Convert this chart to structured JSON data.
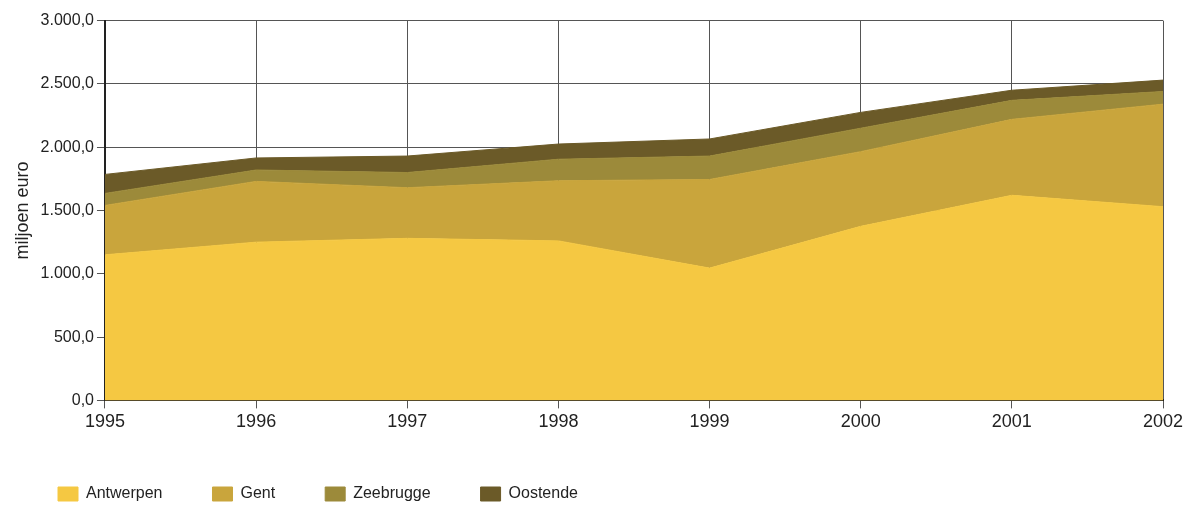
{
  "chart_data": {
    "type": "area",
    "stacked": true,
    "ylabel": "miljoen euro",
    "x": [
      1995,
      1996,
      1997,
      1998,
      1999,
      2000,
      2001,
      2002
    ],
    "xlim": [
      1995,
      2002
    ],
    "xticks": [
      1995,
      1996,
      1997,
      1998,
      1999,
      2000,
      2001,
      2002
    ],
    "ylim": [
      0,
      3000
    ],
    "yticks": [
      {
        "value": 0,
        "label": "0,0"
      },
      {
        "value": 500,
        "label": "500,0"
      },
      {
        "value": 1000,
        "label": "1.000,0"
      },
      {
        "value": 1500,
        "label": "1.500,0"
      },
      {
        "value": 2000,
        "label": "2.000,0"
      },
      {
        "value": 2500,
        "label": "2.500,0"
      },
      {
        "value": 3000,
        "label": "3.000,0"
      }
    ],
    "grid": true,
    "legend": "bottom",
    "series": [
      {
        "name": "Antwerpen",
        "color": "#f5c842",
        "values": [
          1150,
          1250,
          1280,
          1260,
          1045,
          1375,
          1620,
          1530
        ]
      },
      {
        "name": "Gent",
        "color": "#c9a53c",
        "values": [
          390,
          480,
          400,
          475,
          700,
          590,
          600,
          810
        ]
      },
      {
        "name": "Zeebrugge",
        "color": "#9c8a3a",
        "values": [
          95,
          90,
          120,
          170,
          185,
          185,
          150,
          100
        ]
      },
      {
        "name": "Oostende",
        "color": "#6b5a28",
        "values": [
          150,
          95,
          130,
          120,
          135,
          125,
          80,
          90
        ]
      }
    ]
  }
}
